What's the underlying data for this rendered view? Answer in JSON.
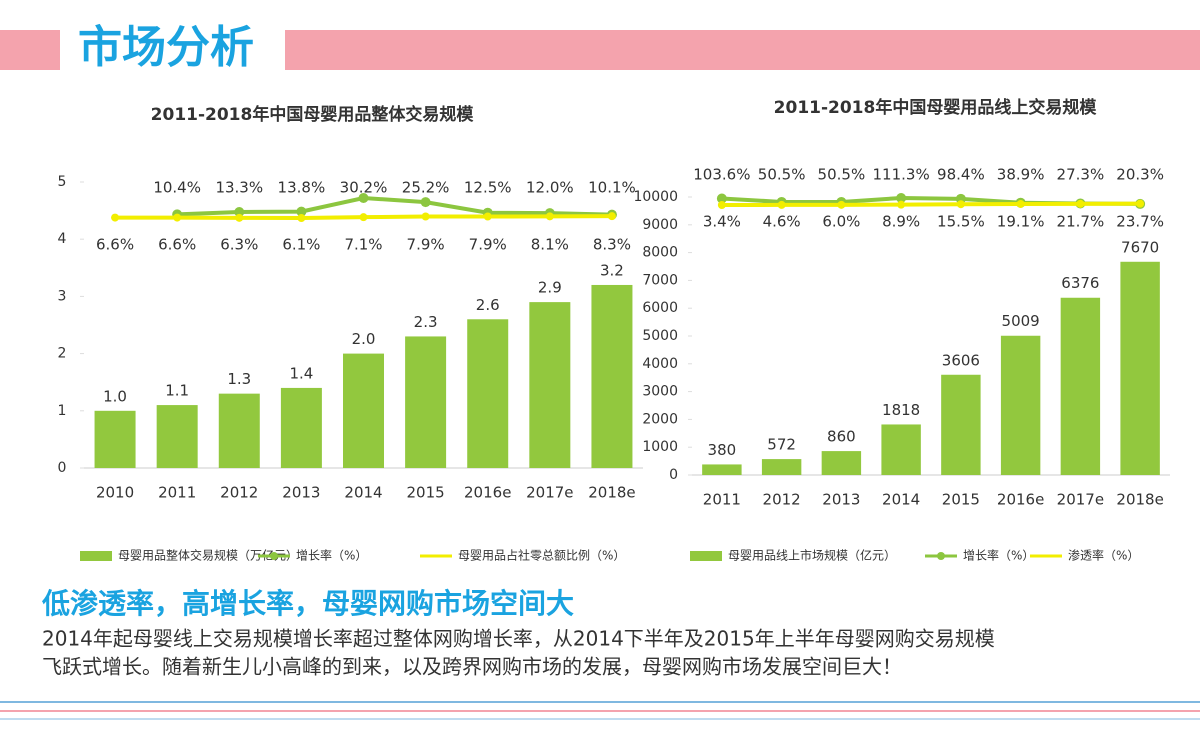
{
  "header": {
    "title": "市场分析"
  },
  "chart_data": [
    {
      "type": "bar",
      "title": "2011-2018年中国母婴用品整体交易规模",
      "categories": [
        "2010",
        "2011",
        "2012",
        "2013",
        "2014",
        "2015",
        "2016e",
        "2017e",
        "2018e"
      ],
      "ylim": [
        0,
        5
      ],
      "yticks": [
        0,
        1,
        2,
        3,
        4,
        5
      ],
      "series": [
        {
          "name": "母婴用品整体交易规模（万亿元）",
          "type": "bar",
          "color": "#92c83e",
          "values": [
            1.0,
            1.1,
            1.3,
            1.4,
            2.0,
            2.3,
            2.6,
            2.9,
            3.2
          ],
          "value_labels": [
            "1.0",
            "1.1",
            "1.3",
            "1.4",
            "2.0",
            "2.3",
            "2.6",
            "2.9",
            "3.2"
          ]
        },
        {
          "name": "增长率（%）",
          "type": "line",
          "marker": true,
          "axis": "y2",
          "color": "#8cc63f",
          "values": [
            null,
            10.4,
            13.3,
            13.8,
            30.2,
            25.2,
            12.5,
            12.0,
            10.1
          ],
          "value_labels": [
            null,
            "10.4%",
            "13.3%",
            "13.8%",
            "30.2%",
            "25.2%",
            "12.5%",
            "12.0%",
            "10.1%"
          ]
        },
        {
          "name": "母婴用品占社零总额比例（%）",
          "type": "line",
          "marker": false,
          "axis": "y2",
          "color": "#f2ee00",
          "values": [
            6.6,
            6.6,
            6.3,
            6.1,
            7.1,
            7.9,
            7.9,
            8.1,
            8.3
          ],
          "value_labels": [
            "6.6%",
            "6.6%",
            "6.3%",
            "6.1%",
            "7.1%",
            "7.9%",
            "7.9%",
            "8.1%",
            "8.3%"
          ]
        }
      ]
    },
    {
      "type": "bar",
      "title": "2011-2018年中国母婴用品线上交易规模",
      "categories": [
        "2011",
        "2012",
        "2013",
        "2014",
        "2015",
        "2016e",
        "2017e",
        "2018e"
      ],
      "ylim": [
        0,
        10000
      ],
      "yticks": [
        0,
        1000,
        2000,
        3000,
        4000,
        5000,
        6000,
        7000,
        8000,
        9000,
        10000
      ],
      "series": [
        {
          "name": "母婴用品线上市场规模（亿元）",
          "type": "bar",
          "color": "#92c83e",
          "values": [
            380,
            572,
            860,
            1818,
            3606,
            5009,
            6376,
            7670
          ]
        },
        {
          "name": "增长率（%）",
          "type": "line",
          "marker": true,
          "axis": "y2",
          "color": "#8cc63f",
          "values": [
            103.6,
            50.5,
            50.5,
            111.3,
            98.4,
            38.9,
            27.3,
            20.3
          ],
          "value_labels": [
            "103.6%",
            "50.5%",
            "50.5%",
            "111.3%",
            "98.4%",
            "38.9%",
            "27.3%",
            "20.3%"
          ]
        },
        {
          "name": "渗透率（%）",
          "type": "line",
          "marker": false,
          "axis": "y2",
          "color": "#f2ee00",
          "values": [
            3.4,
            4.6,
            6.0,
            8.9,
            15.5,
            19.1,
            21.7,
            23.7
          ],
          "value_labels": [
            "3.4%",
            "4.6%",
            "6.0%",
            "8.9%",
            "15.5%",
            "19.1%",
            "21.7%",
            "23.7%"
          ]
        }
      ]
    }
  ],
  "headline": "低渗透率，高增长率，母婴网购市场空间大",
  "paragraph": [
    "2014年起母婴线上交易规模增长率超过整体网购增长率，从2014下半年及2015年上半年母婴网购交易规模",
    "飞跃式增长。随着新生儿小高峰的到来，以及跨界网购市场的发展，母婴网购市场发展空间巨大！"
  ]
}
